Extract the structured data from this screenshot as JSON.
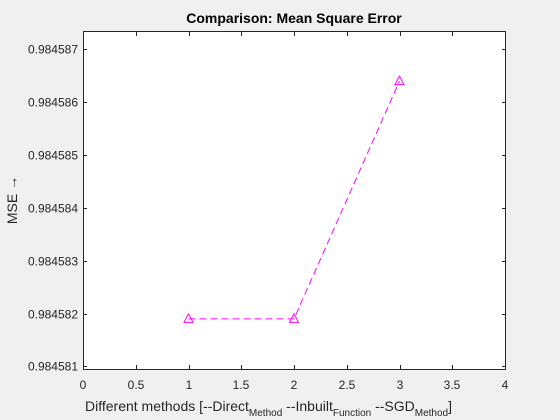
{
  "chart_data": {
    "type": "line",
    "title": "Comparison: Mean Square Error",
    "xlabel": {
      "parts": [
        "Different methods   [--Direct",
        "Method",
        " --Inbuilt",
        "Function",
        " --SGD",
        "Method",
        "]"
      ]
    },
    "ylabel": "MSE →",
    "xlim": [
      0,
      4
    ],
    "ylim": [
      0.98458095,
      0.98458735
    ],
    "xticks": [
      0,
      0.5,
      1,
      1.5,
      2,
      2.5,
      3,
      3.5,
      4
    ],
    "xtick_labels": [
      "0",
      "0.5",
      "1",
      "1.5",
      "2",
      "2.5",
      "3",
      "3.5",
      "4"
    ],
    "yticks": [
      0.984581,
      0.984582,
      0.984583,
      0.984584,
      0.984585,
      0.984586,
      0.984587
    ],
    "ytick_labels": [
      "0.984581",
      "0.984582",
      "0.984583",
      "0.984584",
      "0.984585",
      "0.984586",
      "0.984587"
    ],
    "grid": false,
    "series": [
      {
        "x": [
          1,
          2,
          3
        ],
        "y": [
          0.9845819,
          0.9845819,
          0.9845864
        ],
        "line_style": "dashed",
        "marker": "triangle",
        "color": "#ff00ff"
      }
    ],
    "colors": {
      "axes": "#262626",
      "axes_bg": "#ffffff",
      "figure_bg": "#f0f0f0"
    }
  }
}
